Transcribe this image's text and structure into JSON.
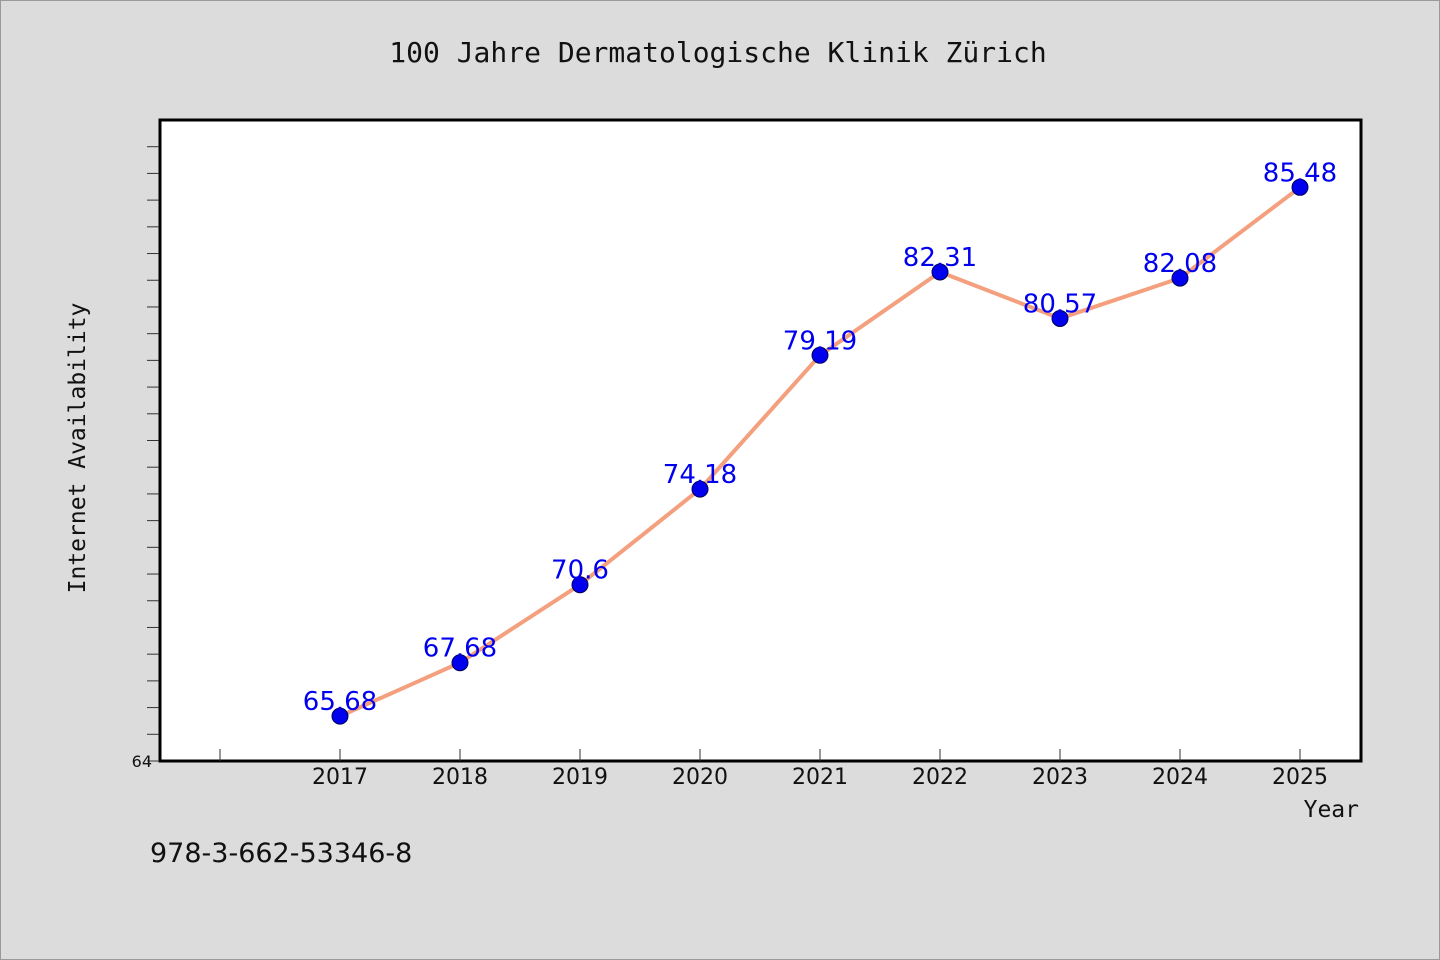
{
  "chart_data": {
    "type": "line",
    "title": "100 Jahre Dermatologische Klinik Zürich",
    "xlabel": "Year",
    "ylabel": "Internet Availability",
    "x": [
      "2017",
      "2018",
      "2019",
      "2020",
      "2021",
      "2022",
      "2023",
      "2024",
      "2025"
    ],
    "series": [
      {
        "values": [
          65.68,
          67.68,
          70.6,
          74.18,
          79.19,
          82.31,
          80.57,
          82.08,
          85.48
        ],
        "labels": [
          "65.68",
          "67.68",
          "70.6",
          "74.18",
          "79.19",
          "82.31",
          "80.57",
          "82.08",
          "85.48"
        ],
        "line_color": "#f4a07e",
        "marker_color": "#0000ee"
      }
    ],
    "ylim": [
      64,
      88
    ],
    "y_tick_labels": [
      "64"
    ],
    "grid": false,
    "legend": "none"
  },
  "footnote": "978-3-662-53346-8"
}
